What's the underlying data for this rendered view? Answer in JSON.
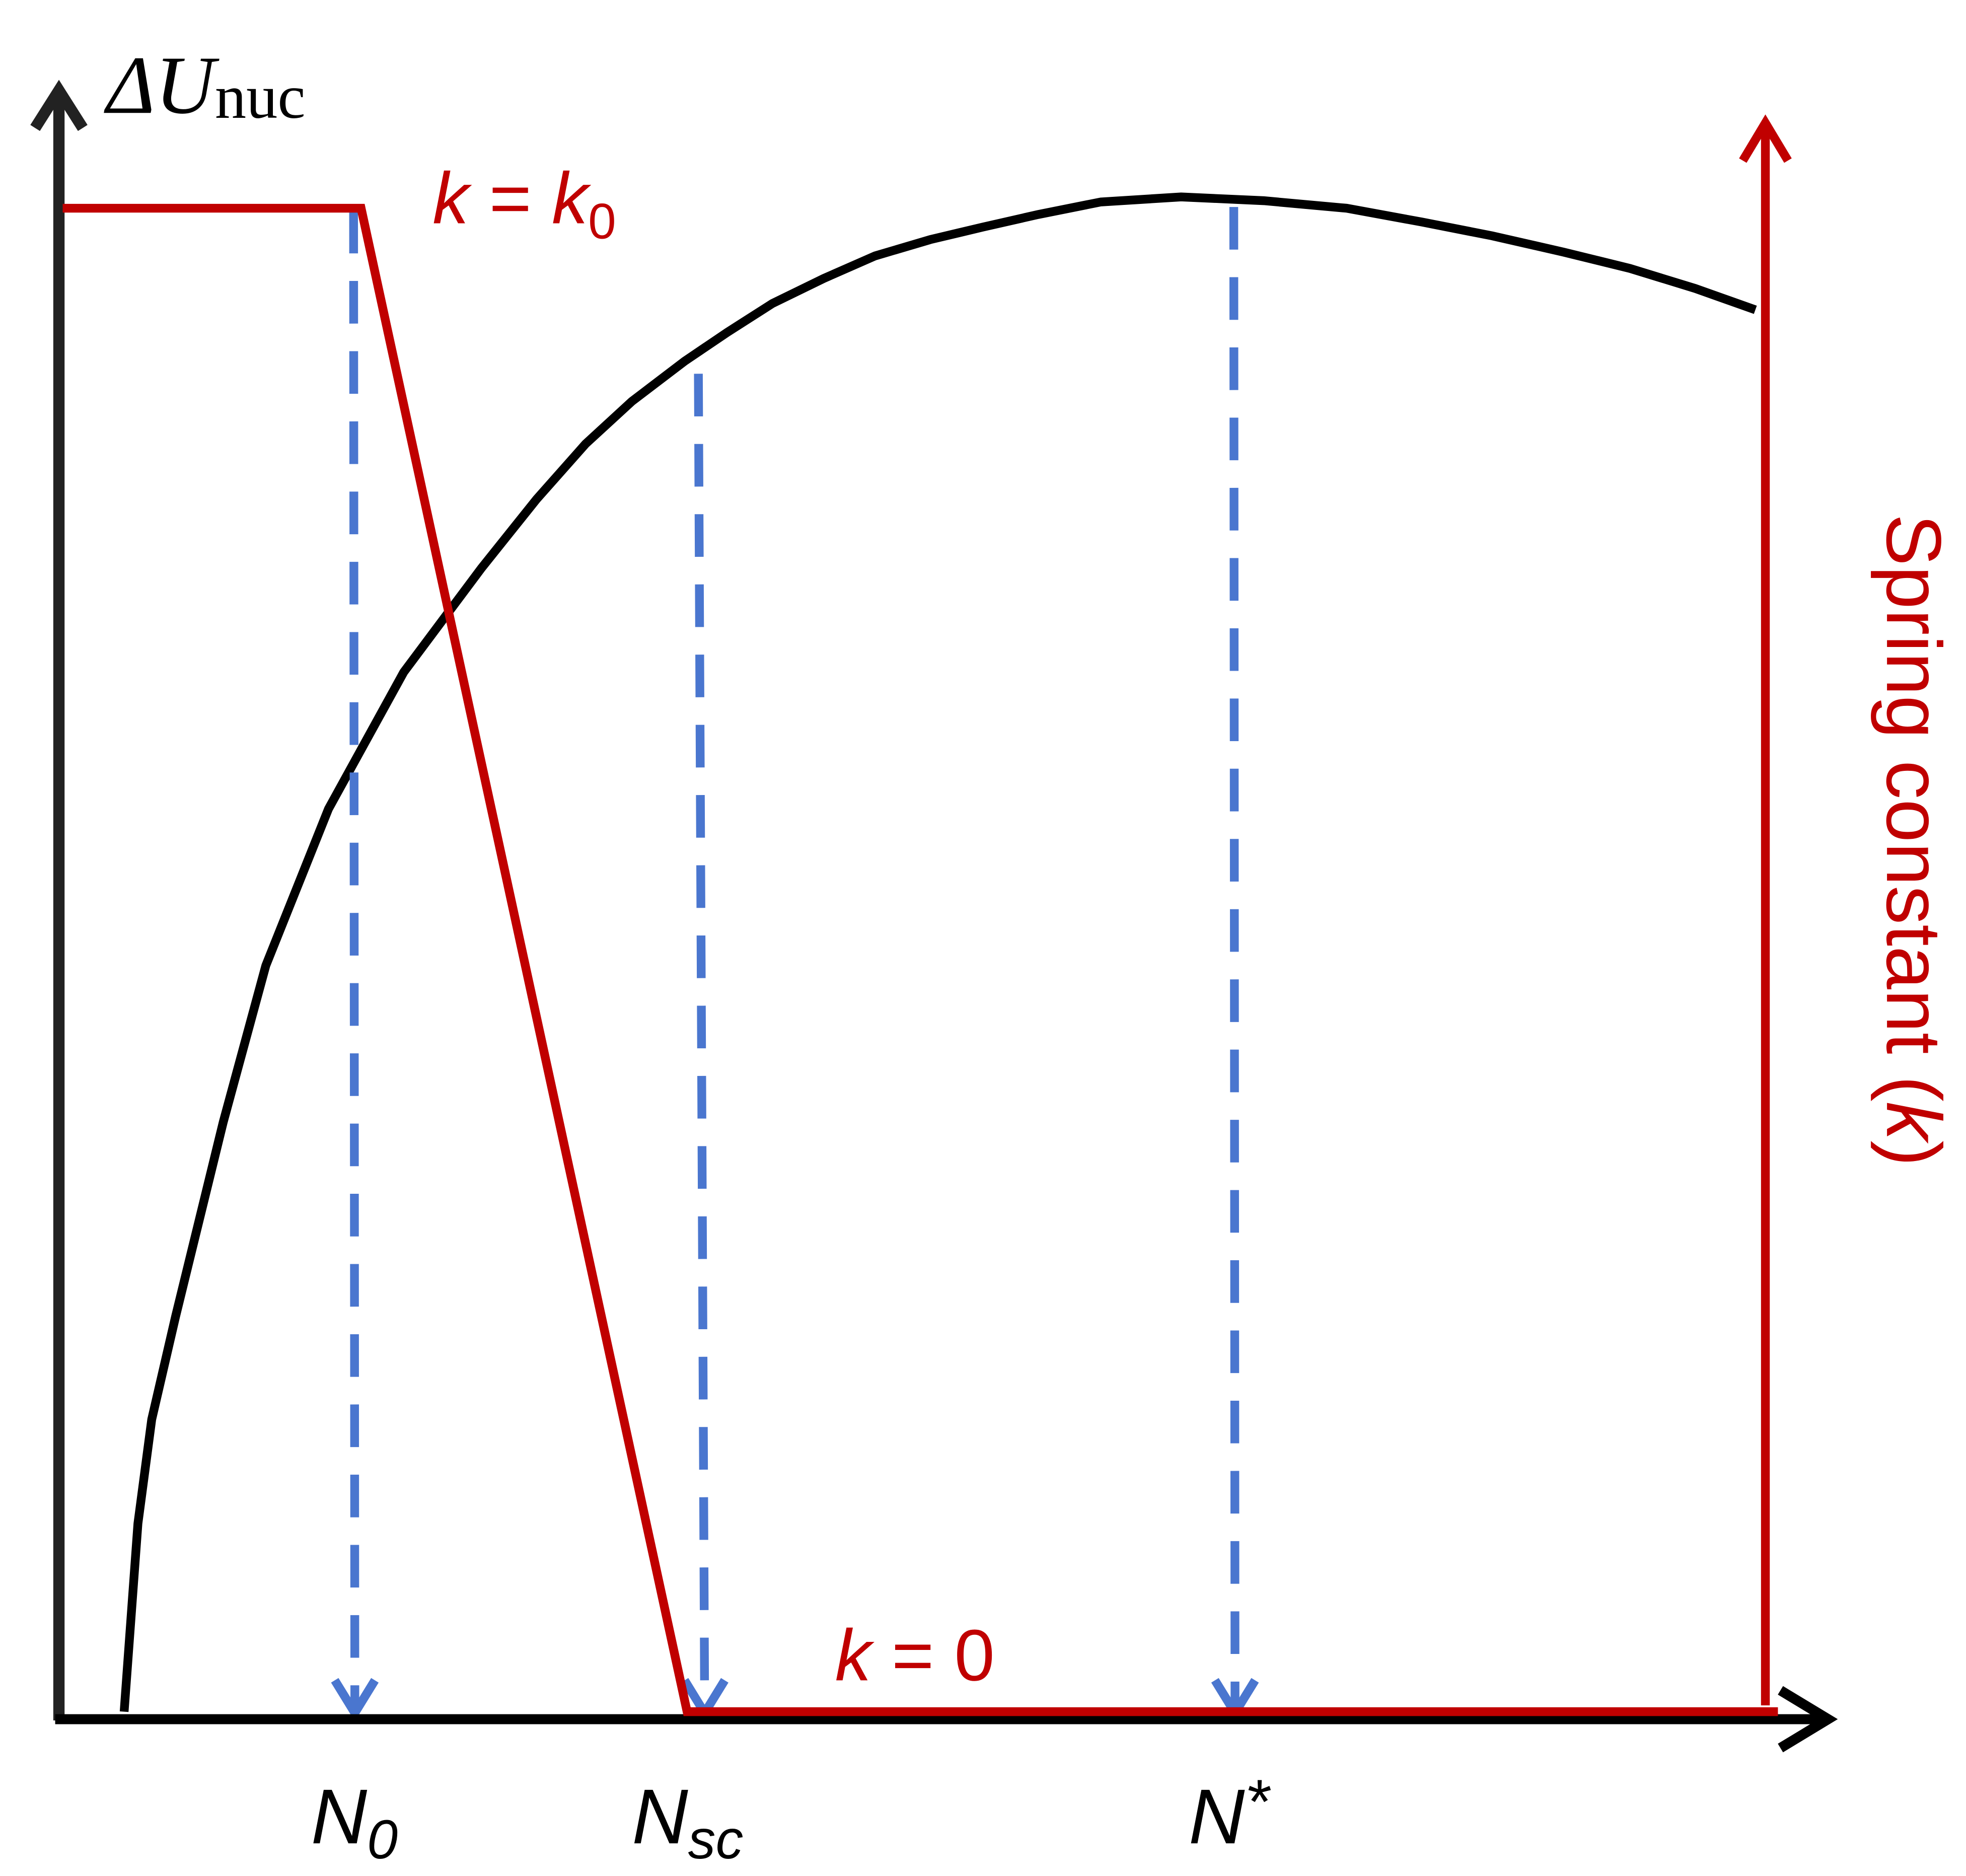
{
  "labels": {
    "y_axis": [
      "ΔU",
      "nuc"
    ],
    "k_equals_k0": [
      "k",
      " = ",
      "k",
      "0"
    ],
    "k_equals_0": [
      "k",
      " = 0"
    ],
    "right_axis": [
      "Spring constant (",
      "k",
      ")"
    ],
    "n0": [
      "N",
      "0"
    ],
    "nsc": [
      "N",
      "sc"
    ],
    "nstar": [
      "N",
      "*"
    ]
  }
}
